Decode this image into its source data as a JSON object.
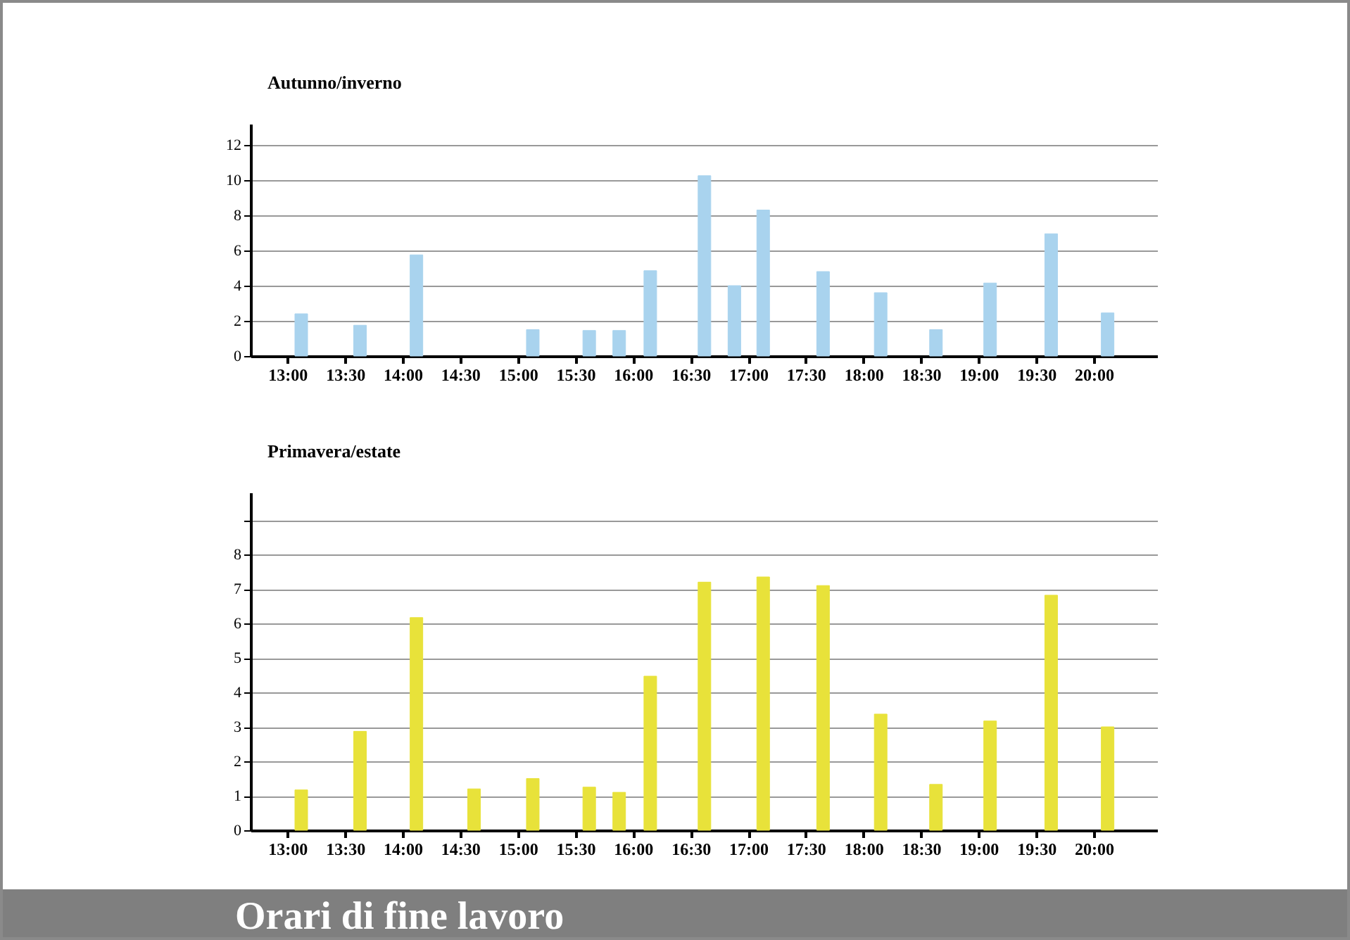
{
  "chart_data": [
    {
      "type": "bar",
      "title": "Autunno/inverno",
      "x": [
        13.12,
        13.63,
        14.12,
        15.13,
        15.62,
        15.88,
        16.15,
        16.62,
        16.88,
        17.13,
        17.65,
        18.15,
        18.63,
        19.1,
        19.63,
        20.12
      ],
      "series": [
        {
          "color": "#a9d3ee",
          "values": [
            2.4,
            1.75,
            5.75,
            1.5,
            1.45,
            1.45,
            4.85,
            10.25,
            4.0,
            8.3,
            4.8,
            3.6,
            1.5,
            4.15,
            6.95,
            2.45
          ]
        }
      ],
      "xlim": [
        12.68,
        20.55
      ],
      "xticks": [
        {
          "value": 13,
          "label": "13:00"
        },
        {
          "value": 13.5,
          "label": "13:30"
        },
        {
          "value": 14,
          "label": "14:00"
        },
        {
          "value": 14.5,
          "label": "14:30"
        },
        {
          "value": 15,
          "label": "15:00"
        },
        {
          "value": 15.5,
          "label": "15:30"
        },
        {
          "value": 16,
          "label": "16:00"
        },
        {
          "value": 16.5,
          "label": "16:30"
        },
        {
          "value": 17,
          "label": "17:00"
        },
        {
          "value": 17.5,
          "label": "17:30"
        },
        {
          "value": 18,
          "label": "18:00"
        },
        {
          "value": 18.5,
          "label": "18:30"
        },
        {
          "value": 19,
          "label": "19:00"
        },
        {
          "value": 19.5,
          "label": "19:30"
        },
        {
          "value": 20,
          "label": "20:00"
        }
      ],
      "ylim": [
        0,
        13.2
      ],
      "yticks": [
        0,
        2,
        4,
        6,
        8,
        10,
        12
      ],
      "grid": "y"
    },
    {
      "type": "bar",
      "title": "Primavera/estate",
      "x": [
        13.12,
        13.63,
        14.12,
        14.62,
        15.13,
        15.62,
        15.88,
        16.15,
        16.62,
        17.13,
        17.65,
        18.15,
        18.63,
        19.1,
        19.63,
        20.12
      ],
      "series": [
        {
          "color": "#e8e23a",
          "values": [
            1.17,
            2.87,
            6.17,
            1.2,
            1.5,
            1.25,
            1.1,
            4.47,
            7.2,
            7.35,
            7.1,
            3.37,
            1.33,
            3.17,
            6.82,
            3.0
          ]
        }
      ],
      "xlim": [
        12.68,
        20.55
      ],
      "xticks": [
        {
          "value": 13,
          "label": "13:00"
        },
        {
          "value": 13.5,
          "label": "13:30"
        },
        {
          "value": 14,
          "label": "14:00"
        },
        {
          "value": 14.5,
          "label": "14:30"
        },
        {
          "value": 15,
          "label": "15:00"
        },
        {
          "value": 15.5,
          "label": "15:30"
        },
        {
          "value": 16,
          "label": "16:00"
        },
        {
          "value": 16.5,
          "label": "16:30"
        },
        {
          "value": 17,
          "label": "17:00"
        },
        {
          "value": 17.5,
          "label": "17:30"
        },
        {
          "value": 18,
          "label": "18:00"
        },
        {
          "value": 18.5,
          "label": "18:30"
        },
        {
          "value": 19,
          "label": "19:00"
        },
        {
          "value": 19.5,
          "label": "19:30"
        },
        {
          "value": 20,
          "label": "20:00"
        }
      ],
      "ylim": [
        0,
        9.8
      ],
      "yticks": [
        0,
        1,
        2,
        3,
        4,
        5,
        6,
        7,
        8,
        {
          "value": 9,
          "label": null
        }
      ],
      "grid": "y",
      "annotations": [
        "Orari di fine lavoro"
      ]
    }
  ]
}
